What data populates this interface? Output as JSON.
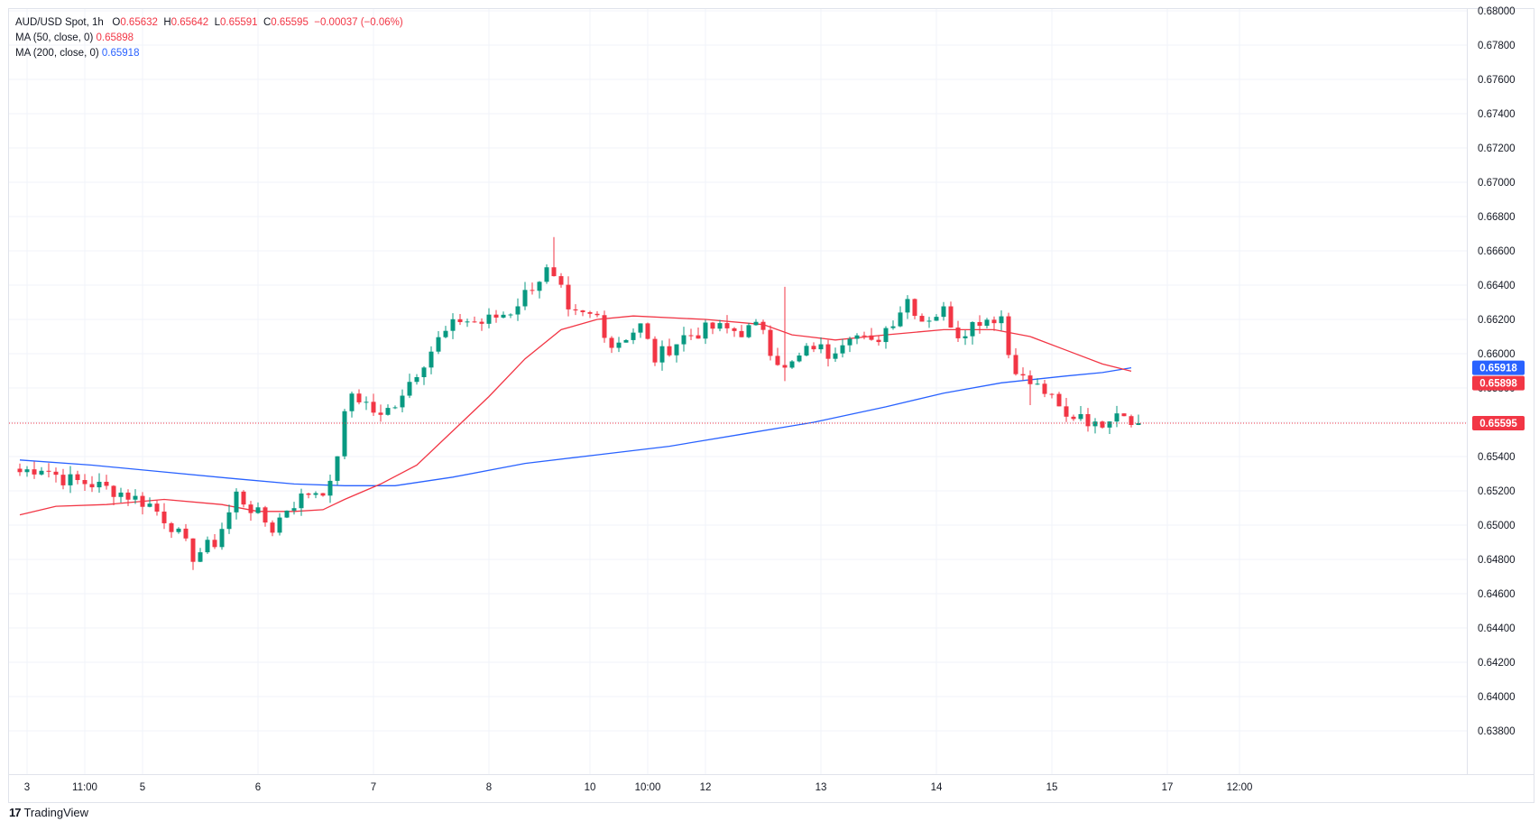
{
  "legend": {
    "symbol": "AUD/USD Spot, 1h",
    "open_label": "O",
    "open": "0.65632",
    "high_label": "H",
    "high": "0.65642",
    "low_label": "L",
    "low": "0.65591",
    "close_label": "C",
    "close": "0.65595",
    "change": "−0.00037 (−0.06%)",
    "ma50_label": "MA (50, close, 0)",
    "ma50_value": "0.65898",
    "ma200_label": "MA (200, close, 0)",
    "ma200_value": "0.65918"
  },
  "branding": {
    "logo_text": "TradingView"
  },
  "colors": {
    "up": "#089981",
    "down": "#f23645",
    "ma50": "#f23645",
    "ma200": "#2962ff",
    "grid": "#f0f3fa",
    "axis_text": "#131722",
    "last_price": "#f23645"
  },
  "chart_data": {
    "type": "candlestick",
    "title": "AUD/USD Spot, 1h",
    "ylim": [
      0.637,
      0.681
    ],
    "y_ticks": [
      "0.68000",
      "0.67800",
      "0.67600",
      "0.67400",
      "0.67200",
      "0.67000",
      "0.66800",
      "0.66600",
      "0.66400",
      "0.66200",
      "0.66000",
      "0.65800",
      "0.65600",
      "0.65400",
      "0.65200",
      "0.65000",
      "0.64800",
      "0.64600",
      "0.64400",
      "0.64200",
      "0.64000",
      "0.63800"
    ],
    "x_ticks": [
      {
        "label": "3",
        "index": 1
      },
      {
        "label": "11:00",
        "index": 9
      },
      {
        "label": "5",
        "index": 17
      },
      {
        "label": "6",
        "index": 33
      },
      {
        "label": "7",
        "index": 49
      },
      {
        "label": "8",
        "index": 65
      },
      {
        "label": "10",
        "index": 79
      },
      {
        "label": "10:00",
        "index": 87
      },
      {
        "label": "12",
        "index": 95
      },
      {
        "label": "13",
        "index": 111
      },
      {
        "label": "14",
        "index": 127
      },
      {
        "label": "15",
        "index": 143
      },
      {
        "label": "17",
        "index": 159
      },
      {
        "label": "12:00",
        "index": 169
      }
    ],
    "price_labels": [
      {
        "name": "MA 200",
        "value": 0.65918,
        "text": "0.65918",
        "color": "#2962ff"
      },
      {
        "name": "MA 50",
        "value": 0.65898,
        "text": "0.65898",
        "color": "#f23645"
      },
      {
        "name": "Last",
        "value": 0.65595,
        "text": "0.65595",
        "color": "#f23645"
      }
    ],
    "waypoints": [
      [
        0,
        0.6531
      ],
      [
        3,
        0.6534
      ],
      [
        6,
        0.6527
      ],
      [
        10,
        0.6524
      ],
      [
        14,
        0.6519
      ],
      [
        18,
        0.6512
      ],
      [
        21,
        0.65
      ],
      [
        24,
        0.6482
      ],
      [
        27,
        0.649
      ],
      [
        29,
        0.6507
      ],
      [
        30,
        0.6518
      ],
      [
        33,
        0.6506
      ],
      [
        35,
        0.6498
      ],
      [
        37,
        0.651
      ],
      [
        40,
        0.6519
      ],
      [
        43,
        0.6522
      ],
      [
        45,
        0.6563
      ],
      [
        46,
        0.6577
      ],
      [
        48,
        0.6571
      ],
      [
        50,
        0.6562
      ],
      [
        52,
        0.6572
      ],
      [
        55,
        0.659
      ],
      [
        58,
        0.6608
      ],
      [
        61,
        0.662
      ],
      [
        64,
        0.6618
      ],
      [
        68,
        0.6625
      ],
      [
        71,
        0.664
      ],
      [
        73,
        0.6648
      ],
      [
        75,
        0.6636
      ],
      [
        76,
        0.6622
      ],
      [
        80,
        0.6622
      ],
      [
        82,
        0.6605
      ],
      [
        86,
        0.6616
      ],
      [
        88,
        0.6597
      ],
      [
        92,
        0.661
      ],
      [
        96,
        0.6615
      ],
      [
        100,
        0.6613
      ],
      [
        103,
        0.6616
      ],
      [
        104,
        0.6603
      ],
      [
        106,
        0.659
      ],
      [
        110,
        0.6605
      ],
      [
        112,
        0.66
      ],
      [
        115,
        0.6613
      ],
      [
        118,
        0.6605
      ],
      [
        121,
        0.662
      ],
      [
        123,
        0.6632
      ],
      [
        125,
        0.662
      ],
      [
        128,
        0.6625
      ],
      [
        130,
        0.6612
      ],
      [
        133,
        0.662
      ],
      [
        136,
        0.6622
      ],
      [
        137,
        0.66
      ],
      [
        139,
        0.6585
      ],
      [
        142,
        0.6578
      ],
      [
        145,
        0.6562
      ],
      [
        147,
        0.6566
      ],
      [
        149,
        0.6557
      ],
      [
        152,
        0.6568
      ],
      [
        155,
        0.656
      ]
    ],
    "spikes": [
      {
        "index": 74,
        "high": 0.6668
      },
      {
        "index": 106,
        "low": 0.6584,
        "high": 0.6639
      },
      {
        "index": 140,
        "low": 0.657
      }
    ],
    "ma50_points": [
      [
        0,
        0.6506
      ],
      [
        5,
        0.6511
      ],
      [
        12,
        0.6512
      ],
      [
        20,
        0.6515
      ],
      [
        28,
        0.6512
      ],
      [
        33,
        0.6508
      ],
      [
        38,
        0.6508
      ],
      [
        42,
        0.6509
      ],
      [
        45,
        0.6515
      ],
      [
        50,
        0.6524
      ],
      [
        55,
        0.6535
      ],
      [
        60,
        0.6555
      ],
      [
        65,
        0.6575
      ],
      [
        70,
        0.6597
      ],
      [
        75,
        0.6614
      ],
      [
        80,
        0.662
      ],
      [
        85,
        0.6622
      ],
      [
        95,
        0.662
      ],
      [
        103,
        0.6617
      ],
      [
        107,
        0.6611
      ],
      [
        113,
        0.6608
      ],
      [
        120,
        0.6611
      ],
      [
        128,
        0.6614
      ],
      [
        135,
        0.6614
      ],
      [
        140,
        0.661
      ],
      [
        145,
        0.6602
      ],
      [
        150,
        0.6594
      ],
      [
        154,
        0.65898
      ]
    ],
    "ma200_points": [
      [
        0,
        0.6538
      ],
      [
        10,
        0.6535
      ],
      [
        20,
        0.6531
      ],
      [
        30,
        0.6527
      ],
      [
        38,
        0.6524
      ],
      [
        45,
        0.6523
      ],
      [
        52,
        0.6523
      ],
      [
        60,
        0.6528
      ],
      [
        70,
        0.6536
      ],
      [
        80,
        0.6541
      ],
      [
        90,
        0.6546
      ],
      [
        100,
        0.6553
      ],
      [
        110,
        0.656
      ],
      [
        120,
        0.6569
      ],
      [
        128,
        0.6577
      ],
      [
        136,
        0.6583
      ],
      [
        145,
        0.6587
      ],
      [
        150,
        0.6589
      ],
      [
        154,
        0.65918
      ]
    ],
    "last_price": 0.65595
  }
}
